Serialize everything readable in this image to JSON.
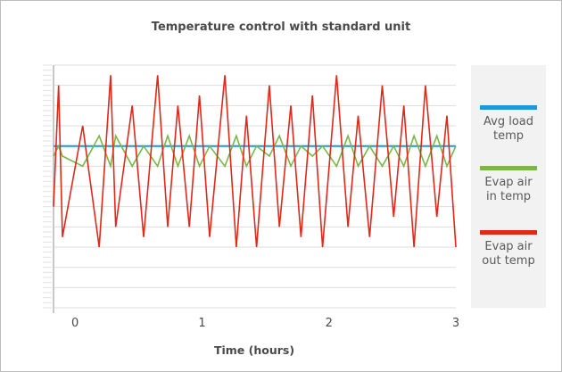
{
  "chart_data": {
    "type": "line",
    "title": "Temperature control with standard unit",
    "xlabel": "Time (hours)",
    "ylabel": "",
    "xlim": [
      -0.17,
      3.0
    ],
    "ylim": [
      -12,
      12
    ],
    "x_ticks": [
      0,
      1,
      2,
      3
    ],
    "y_axis_labels_shown": false,
    "grid": "horizontal",
    "legend_position": "right",
    "series": [
      {
        "name": "Avg load\ntemp",
        "color": "#1a9ad6",
        "x": [
          -0.17,
          3.0
        ],
        "y": [
          4,
          4
        ]
      },
      {
        "name": "Evap air\nin temp",
        "color": "#7ab648",
        "x": [
          -0.17,
          -0.13,
          -0.1,
          0.06,
          0.19,
          0.28,
          0.32,
          0.45,
          0.54,
          0.65,
          0.73,
          0.81,
          0.9,
          0.98,
          1.06,
          1.18,
          1.27,
          1.35,
          1.43,
          1.53,
          1.61,
          1.7,
          1.78,
          1.87,
          1.95,
          2.06,
          2.15,
          2.23,
          2.32,
          2.42,
          2.51,
          2.59,
          2.67,
          2.76,
          2.85,
          2.93,
          3.0
        ],
        "y": [
          3,
          4,
          3,
          2,
          5,
          2,
          5,
          2,
          4,
          2,
          5,
          2,
          5,
          2,
          4,
          2,
          5,
          2,
          4,
          3,
          5,
          2,
          4,
          3,
          4,
          2,
          5,
          2,
          4,
          2,
          4,
          2,
          5,
          2,
          5,
          2,
          4
        ]
      },
      {
        "name": "Evap air\nout temp",
        "color": "#e0281b",
        "x": [
          -0.17,
          -0.13,
          -0.1,
          0.06,
          0.19,
          0.28,
          0.32,
          0.45,
          0.54,
          0.65,
          0.73,
          0.81,
          0.9,
          0.98,
          1.06,
          1.18,
          1.27,
          1.35,
          1.43,
          1.53,
          1.61,
          1.7,
          1.78,
          1.87,
          1.95,
          2.06,
          2.15,
          2.23,
          2.32,
          2.42,
          2.51,
          2.59,
          2.67,
          2.76,
          2.85,
          2.93,
          3.0
        ],
        "y": [
          -2,
          10,
          -5,
          6,
          -6,
          11,
          -4,
          8,
          -5,
          11,
          -4,
          8,
          -4,
          9,
          -5,
          11,
          -6,
          7,
          -6,
          10,
          -4,
          8,
          -5,
          9,
          -6,
          11,
          -4,
          7,
          -5,
          10,
          -3,
          8,
          -6,
          10,
          -3,
          7,
          -6
        ]
      }
    ]
  }
}
